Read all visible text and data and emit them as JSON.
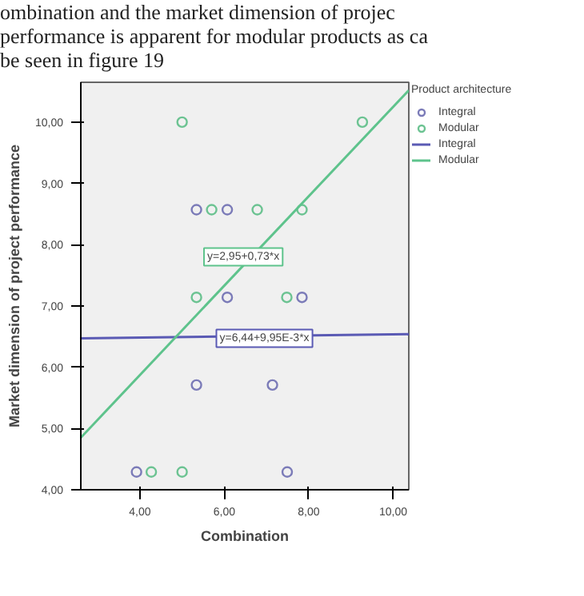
{
  "chart_data": {
    "type": "scatter",
    "xlabel": "Combination",
    "ylabel": "Market dimension of project performance",
    "legend_title": "Product architecture",
    "annotations": [
      "ombination and the market dimension of projec",
      "performance is apparent for modular products as ca",
      "be          seen          in          figure          19",
      {
        "text": "y=2,95+0,73*x",
        "x": 6.45,
        "y": 7.8
      },
      {
        "text": "y=6,44+9,95E-3*x",
        "x": 6.95,
        "y": 6.47
      }
    ],
    "xlim": [
      2.6,
      10.37
    ],
    "ylim": [
      4.0,
      10.65
    ],
    "xticks": [
      {
        "value": 4,
        "label": "4,00"
      },
      {
        "value": 6,
        "label": "6,00"
      },
      {
        "value": 8,
        "label": "8,00"
      },
      {
        "value": 10,
        "label": "10,00"
      }
    ],
    "yticks": [
      {
        "value": 4,
        "label": "4,00"
      },
      {
        "value": 5,
        "label": "5,00"
      },
      {
        "value": 6,
        "label": "6,00"
      },
      {
        "value": 7,
        "label": "7,00"
      },
      {
        "value": 8,
        "label": "8,00"
      },
      {
        "value": 9,
        "label": "9,00"
      },
      {
        "value": 10,
        "label": "10,00"
      }
    ],
    "grid": false,
    "legend": "right",
    "series": [
      {
        "name": "Integral",
        "type": "scatter",
        "color": "#7b7bb8",
        "x": [
          5.34,
          6.07,
          6.07,
          7.84,
          3.92,
          5.34,
          7.14,
          7.49
        ],
        "values": [
          8.57,
          8.57,
          7.14,
          7.14,
          4.29,
          5.71,
          5.71,
          4.29
        ]
      },
      {
        "name": "Modular",
        "type": "scatter",
        "color": "#6cc392",
        "x": [
          5.0,
          5.7,
          6.78,
          7.84,
          9.27,
          5.34,
          7.48,
          4.27,
          5.0
        ],
        "values": [
          10.0,
          8.57,
          8.57,
          8.57,
          10.0,
          7.14,
          7.14,
          4.29,
          4.29
        ]
      },
      {
        "name": "Integral",
        "type": "line",
        "color": "#5a5ab4",
        "x": [
          2.6,
          10.37
        ],
        "values": [
          6.47,
          6.54
        ]
      },
      {
        "name": "Modular",
        "type": "line",
        "color": "#5ec38c",
        "x": [
          2.6,
          10.37
        ],
        "values": [
          4.85,
          10.52
        ]
      }
    ]
  }
}
